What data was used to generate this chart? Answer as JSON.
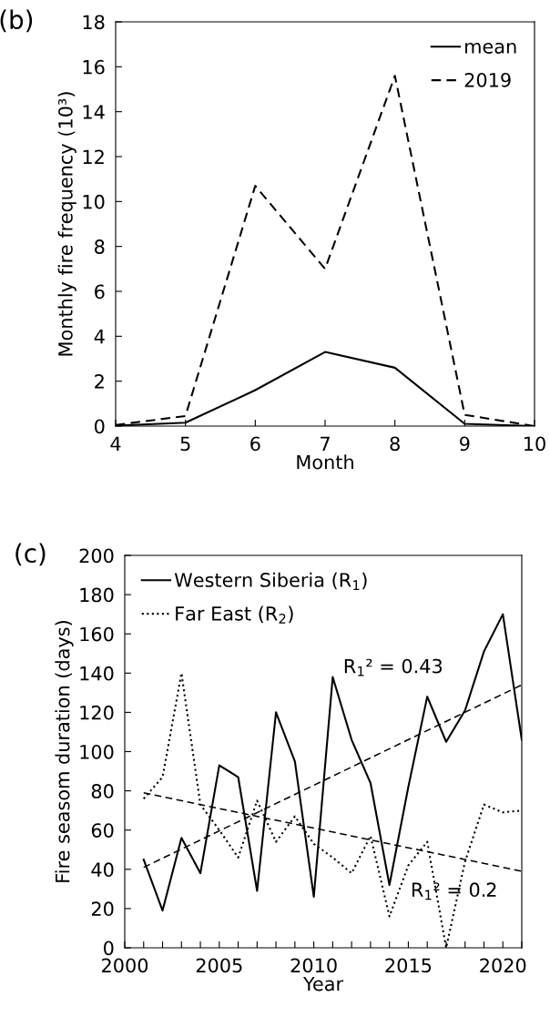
{
  "chart_data": [
    {
      "type": "line",
      "title": "(b)",
      "xlabel": "Month",
      "ylabel": "Monthly fire frequency (10³)",
      "x": [
        4,
        5,
        6,
        7,
        8,
        9,
        10
      ],
      "series": [
        {
          "name": "mean",
          "color": "#000000",
          "line_style": "solid",
          "values": [
            0.02,
            0.15,
            1.6,
            3.3,
            2.6,
            0.1,
            0.0
          ]
        },
        {
          "name": "2019",
          "color": "#000000",
          "line_style": "dashed",
          "values": [
            0.05,
            0.45,
            10.7,
            7.0,
            15.6,
            0.5,
            0.0
          ]
        }
      ],
      "xlim": [
        4,
        10
      ],
      "xticks": [
        4,
        5,
        6,
        7,
        8,
        9,
        10
      ],
      "ylim": [
        0,
        18
      ],
      "yticks": [
        0,
        2,
        4,
        6,
        8,
        10,
        12,
        14,
        16,
        18
      ],
      "grid": false,
      "legend": "top right",
      "marker": "none"
    },
    {
      "type": "line",
      "title": "(c)",
      "xlabel": "Year",
      "ylabel": "Fire seasom duration (days)",
      "x": [
        2001,
        2002,
        2003,
        2004,
        2005,
        2006,
        2007,
        2008,
        2009,
        2010,
        2011,
        2012,
        2013,
        2014,
        2015,
        2016,
        2017,
        2018,
        2019,
        2020,
        2021
      ],
      "series": [
        {
          "name": "Western Siberia (R$_{1}$)",
          "color": "#000000",
          "line_style": "solid",
          "values": [
            45,
            19,
            56,
            38,
            93,
            87,
            29,
            120,
            95,
            26,
            138,
            106,
            84,
            32,
            82,
            128,
            105,
            121,
            151,
            170,
            106
          ]
        },
        {
          "name": "Far East (R$_{2}$)",
          "color": "#000000",
          "line_style": "dotted",
          "values": [
            76,
            87,
            140,
            73,
            60,
            46,
            75,
            54,
            67,
            53,
            46,
            38,
            57,
            16,
            42,
            54,
            0,
            44,
            73,
            69,
            70
          ]
        },
        {
          "type": "line",
          "color": "#000000",
          "line_style": "dashed",
          "x": [
            2001,
            2011,
            2021
          ],
          "values": [
            41,
            87.5,
            134
          ]
        },
        {
          "type": "line",
          "color": "#000000",
          "line_style": "dashed",
          "x": [
            2001,
            2011,
            2021
          ],
          "values": [
            79,
            59,
            39
          ]
        }
      ],
      "annotations": [
        "R$_{1}$² = 0.43",
        "R$_{1}$² = 0.2"
      ],
      "xlim": [
        2000,
        2021
      ],
      "xticks": [
        2000,
        {
          "value": 2001,
          "label": null
        },
        {
          "value": 2002,
          "label": null
        },
        {
          "value": 2003,
          "label": null
        },
        {
          "value": 2004,
          "label": null
        },
        2005,
        {
          "value": 2006,
          "label": null
        },
        {
          "value": 2007,
          "label": null
        },
        {
          "value": 2008,
          "label": null
        },
        {
          "value": 2009,
          "label": null
        },
        2010,
        {
          "value": 2011,
          "label": null
        },
        {
          "value": 2012,
          "label": null
        },
        {
          "value": 2013,
          "label": null
        },
        {
          "value": 2014,
          "label": null
        },
        2015,
        {
          "value": 2016,
          "label": null
        },
        {
          "value": 2017,
          "label": null
        },
        {
          "value": 2018,
          "label": null
        },
        {
          "value": 2019,
          "label": null
        },
        2020,
        {
          "value": 2021,
          "label": null
        }
      ],
      "ylim": [
        0,
        200
      ],
      "yticks": [
        0,
        20,
        40,
        60,
        80,
        100,
        120,
        140,
        160,
        180,
        200
      ],
      "grid": false,
      "legend": "top left",
      "marker": "none"
    }
  ]
}
